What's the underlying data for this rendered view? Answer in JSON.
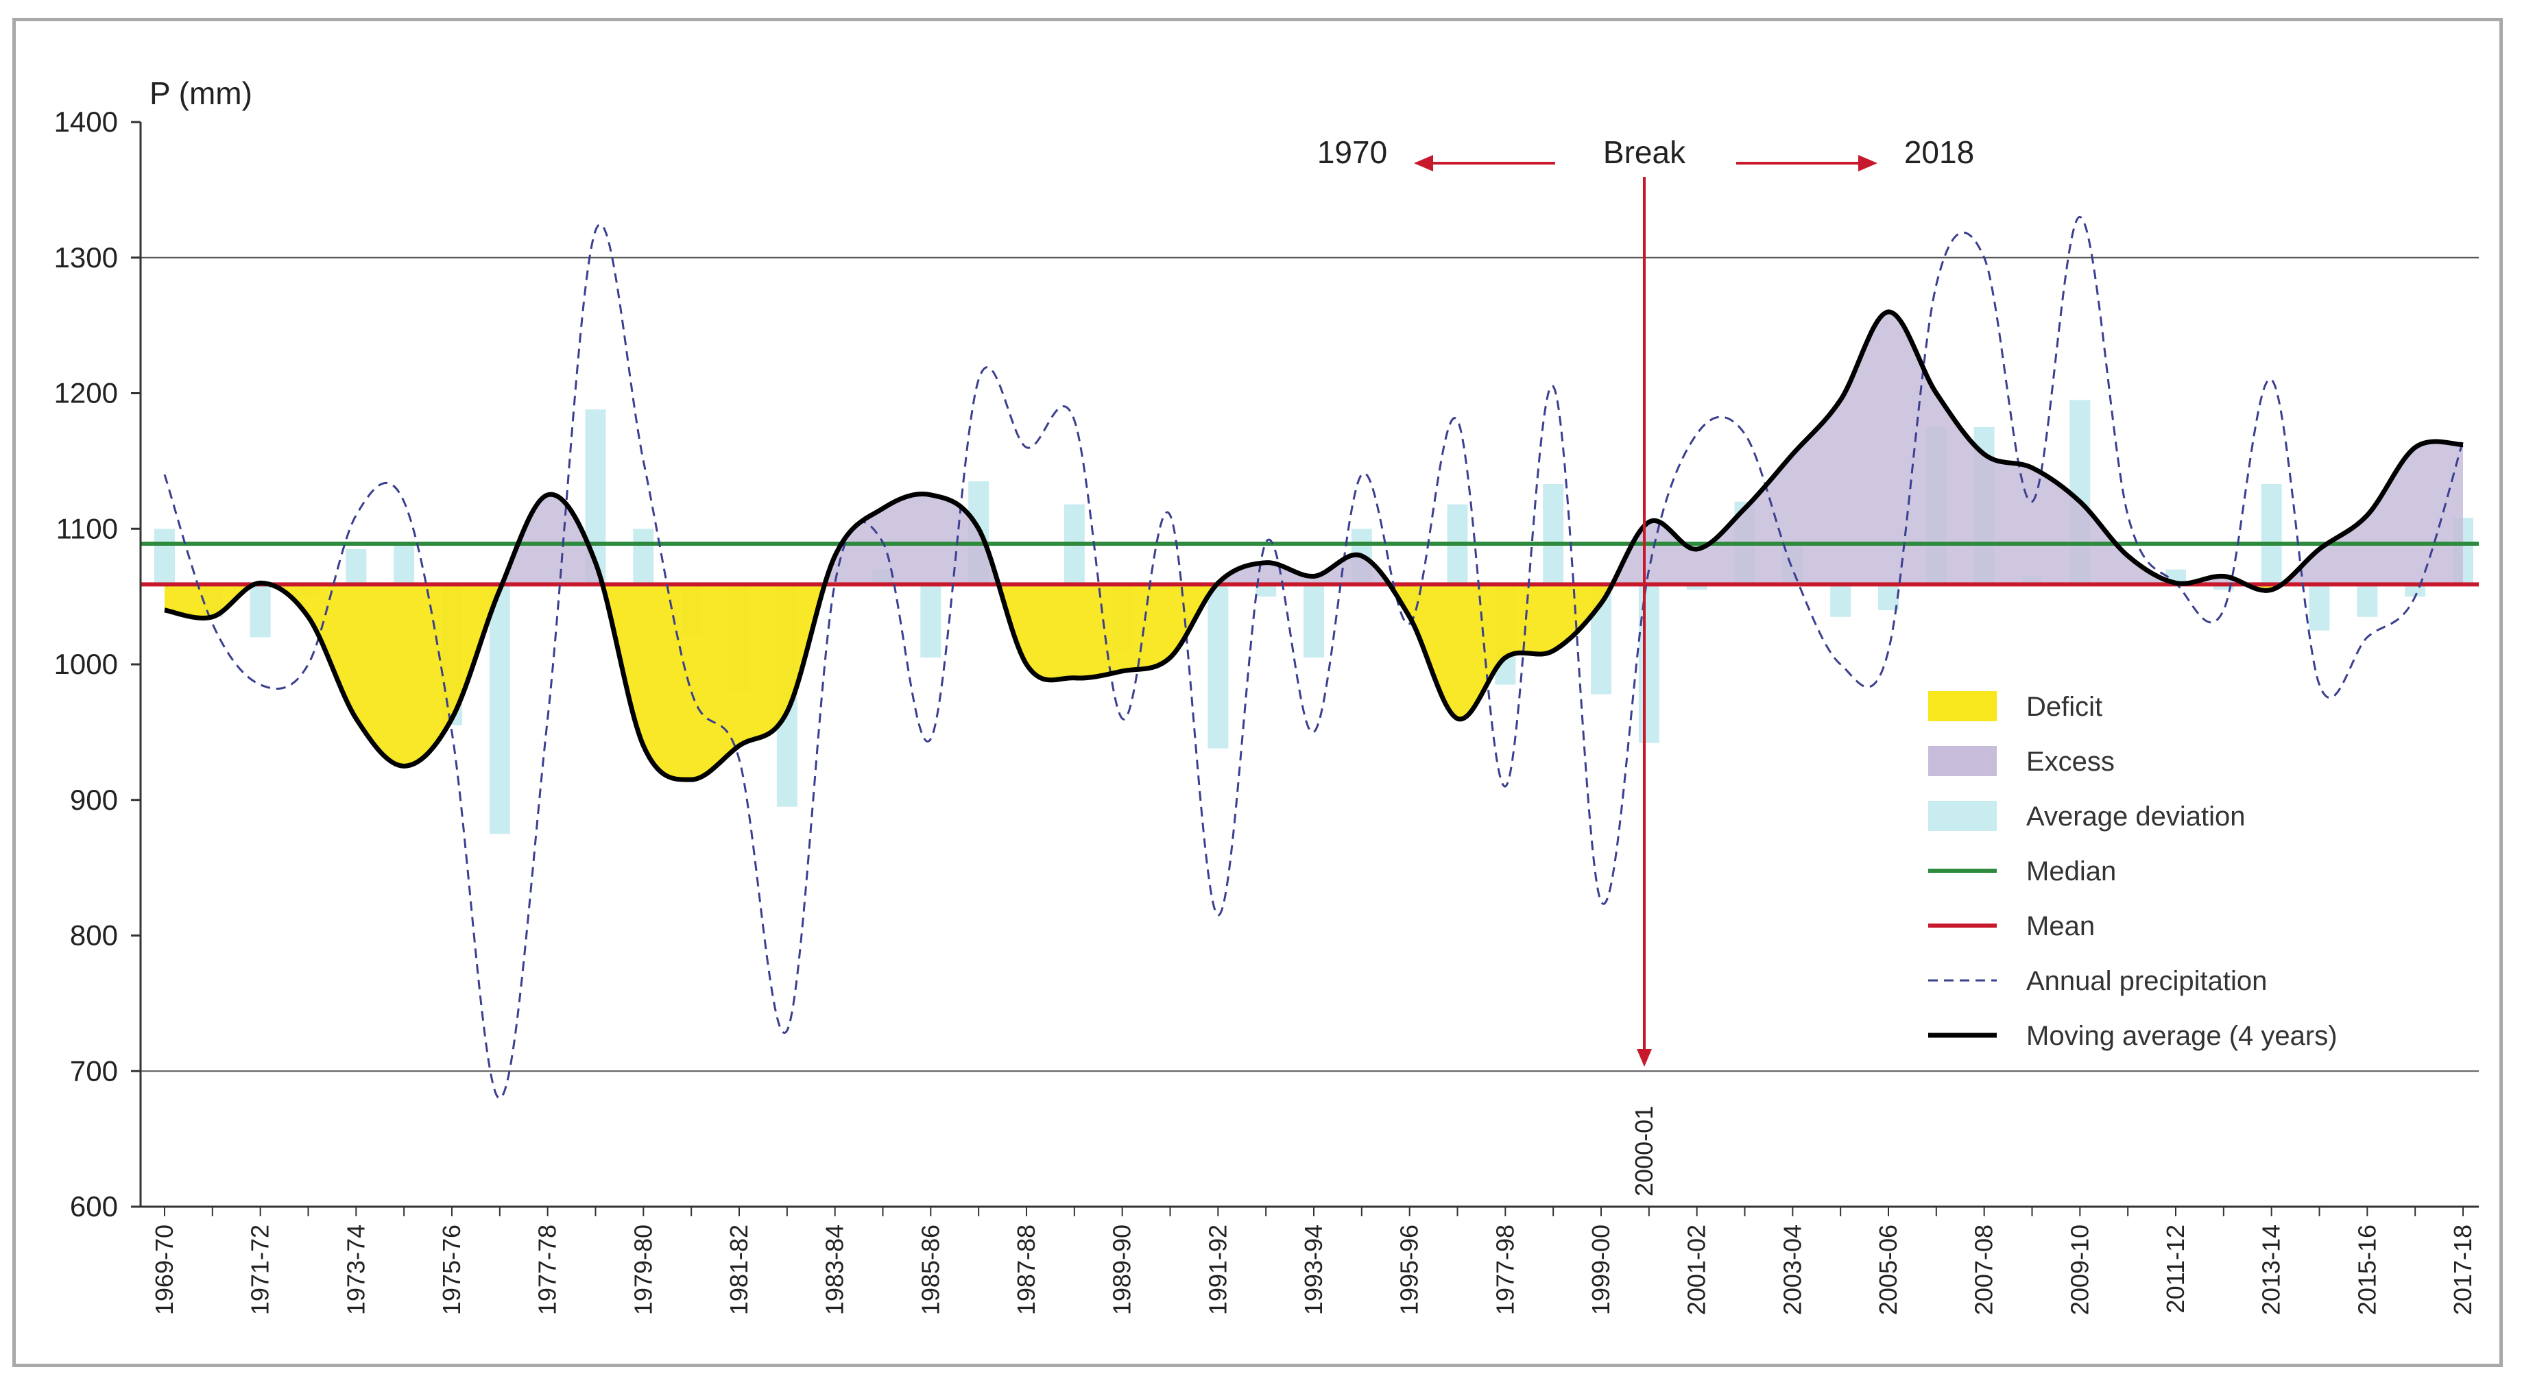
{
  "chart_data": {
    "type": "bar",
    "ylabel": "P (mm)",
    "ylim": [
      600,
      1400
    ],
    "yticks": [
      1400,
      1300,
      1200,
      1100,
      1000,
      900,
      800,
      700,
      600
    ],
    "xtick_labels": [
      "1969-70",
      "1971-72",
      "1973-74",
      "1975-76",
      "1977-78",
      "1979-80",
      "1981-82",
      "1983-84",
      "1985-86",
      "1987-88",
      "1989-90",
      "1991-92",
      "1993-94",
      "1995-96",
      "1977-98",
      "1999-00",
      "2001-02",
      "2003-04",
      "2005-06",
      "2007-08",
      "2009-10",
      "2011-12",
      "2013-14",
      "2015-16",
      "2017-18"
    ],
    "mean": 1059,
    "median": 1089,
    "annual_precipitation": [
      1140,
      1030,
      985,
      1000,
      1110,
      1120,
      950,
      680,
      960,
      1320,
      1150,
      980,
      930,
      730,
      1060,
      1090,
      945,
      1210,
      1160,
      1180,
      960,
      1110,
      815,
      1090,
      950,
      1140,
      1030,
      1180,
      910,
      1205,
      825,
      1070,
      1170,
      1170,
      1070,
      1000,
      1010,
      1280,
      1300,
      1120,
      1330,
      1110,
      1060,
      1040,
      1210,
      985,
      1020,
      1050,
      1165
    ],
    "average_deviation": [
      1100,
      1035,
      1020,
      1050,
      1085,
      1090,
      955,
      875,
      1060,
      1188,
      1100,
      1022,
      980,
      895,
      1060,
      1070,
      1005,
      1135,
      1060,
      1118,
      1010,
      1055,
      938,
      1050,
      1005,
      1100,
      1045,
      1118,
      985,
      1133,
      978,
      942,
      1055,
      1120,
      1090,
      1035,
      1040,
      1175,
      1175,
      1065,
      1195,
      1060,
      1070,
      1055,
      1133,
      1025,
      1035,
      1050,
      1108
    ],
    "moving_average_4_years": [
      1040,
      1035,
      1060,
      1035,
      960,
      925,
      960,
      1055,
      1125,
      1075,
      940,
      915,
      940,
      965,
      1080,
      1115,
      1125,
      1100,
      1000,
      990,
      995,
      1005,
      1060,
      1075,
      1065,
      1080,
      1035,
      960,
      1005,
      1010,
      1045,
      1105,
      1085,
      1115,
      1155,
      1195,
      1260,
      1200,
      1155,
      1145,
      1120,
      1080,
      1060,
      1065,
      1055,
      1085,
      1110,
      1160,
      1162
    ],
    "break": {
      "label": "Break",
      "year_label": "2000-01",
      "left_label": "1970",
      "right_label": "2018"
    },
    "legend": [
      {
        "name": "Deficit",
        "color": "#f8e71c",
        "symbol": "box"
      },
      {
        "name": "Excess",
        "color": "#c7bddb",
        "symbol": "box"
      },
      {
        "name": "Average deviation",
        "color": "#c9ecf0",
        "symbol": "box"
      },
      {
        "name": "Median",
        "color": "#2e8b3e",
        "symbol": "line"
      },
      {
        "name": "Mean",
        "color": "#c8182c",
        "symbol": "line"
      },
      {
        "name": "Annual precipitation",
        "color": "#3a3f8f",
        "symbol": "dashed"
      },
      {
        "name": "Moving average (4 years)",
        "color": "#000000",
        "symbol": "thick"
      }
    ],
    "colors": {
      "mean": "#c8182c",
      "median": "#2e8b3e",
      "break": "#c8182c",
      "annual": "#3a3f8f",
      "deviation": "#c9ecf0",
      "deficit": "#f8e71c",
      "excess": "#c7bddb"
    }
  }
}
